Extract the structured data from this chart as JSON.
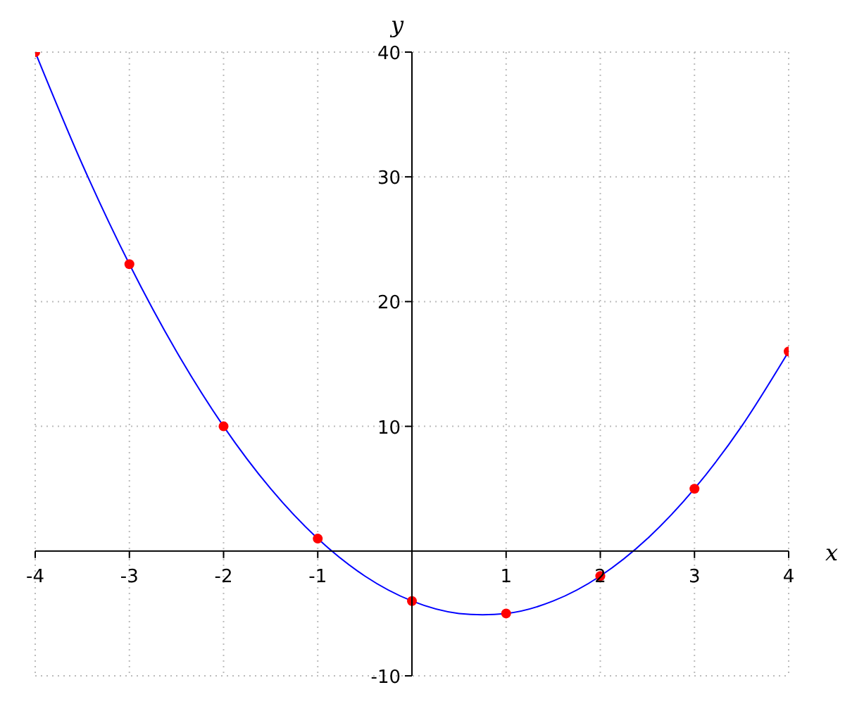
{
  "chart_data": {
    "type": "scatter",
    "xlabel": "x",
    "ylabel": "y",
    "xlim": [
      -4,
      4
    ],
    "ylim": [
      -10,
      40
    ],
    "xticks": [
      -4,
      -3,
      -2,
      -1,
      1,
      2,
      3,
      4
    ],
    "yticks": [
      -10,
      10,
      20,
      30,
      40
    ],
    "grid": true,
    "series": [
      {
        "type": "line",
        "color": "#0000ff",
        "marker": "none",
        "x": [
          -4,
          -3.5,
          -3,
          -2.5,
          -2,
          -1.5,
          -1,
          -0.5,
          0,
          0.5,
          0.75,
          1,
          1.5,
          2,
          2.5,
          3,
          3.5,
          4
        ],
        "values": [
          40,
          31,
          23,
          16,
          10,
          5,
          1,
          -2,
          -4,
          -5,
          -5.1,
          -5,
          -4,
          -2,
          1,
          5,
          10,
          16
        ]
      },
      {
        "color": "#ff0000",
        "marker": "circle",
        "x": [
          -4,
          -3,
          -2,
          -1,
          0,
          1,
          2,
          3,
          4
        ],
        "values": [
          40,
          23,
          10,
          1,
          -4,
          -5,
          -2,
          5,
          16
        ]
      }
    ]
  }
}
